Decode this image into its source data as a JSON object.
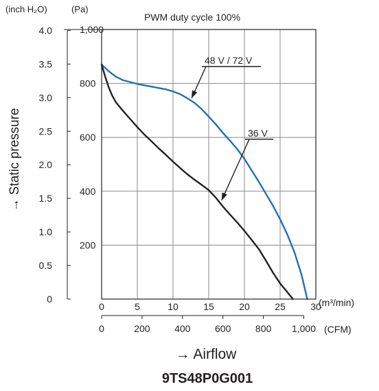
{
  "chart_data": {
    "type": "line",
    "title": "9TS48P0G001",
    "subtitle": "PWM duty cycle 100%",
    "xlabel": "Airflow",
    "ylabel": "Static pressure",
    "x_unit_primary": "(m³/min)",
    "x_unit_secondary": "(CFM)",
    "y_unit_primary": "(Pa)",
    "y_unit_secondary": "(inch H₂O)",
    "xlim": [
      0,
      30
    ],
    "ylim": [
      0,
      1000
    ],
    "x_ticks": [
      "0",
      "5",
      "10",
      "15",
      "20",
      "25",
      "30"
    ],
    "x_ticks_cfm": [
      "0",
      "200",
      "400",
      "600",
      "800",
      "1,000"
    ],
    "cfm_values": [
      0,
      200,
      400,
      600,
      800,
      1000
    ],
    "y_ticks_pa": [
      "200",
      "400",
      "600",
      "800",
      "1,000"
    ],
    "pa_values": [
      200,
      400,
      600,
      800,
      1000
    ],
    "y_ticks_inh2o": [
      "0",
      "0.5",
      "1.0",
      "1.5",
      "2.0",
      "2.5",
      "3.0",
      "3.5",
      "4.0"
    ],
    "inh2o_values": [
      0,
      0.5,
      1.0,
      1.5,
      2.0,
      2.5,
      3.0,
      3.5,
      4.0
    ],
    "grid": true,
    "series": [
      {
        "name": "48 V / 72 V",
        "color": "#1f6fb4",
        "x": [
          0,
          1,
          2,
          3,
          5,
          7,
          8,
          9,
          10,
          11,
          12,
          13,
          14,
          15,
          16,
          17,
          18,
          19,
          20,
          21,
          22,
          23,
          24,
          25,
          26,
          27,
          28,
          28.8
        ],
        "y": [
          870,
          845,
          825,
          812,
          798,
          788,
          783,
          778,
          770,
          760,
          745,
          728,
          705,
          677,
          648,
          616,
          587,
          556,
          520,
          478,
          436,
          391,
          346,
          296,
          240,
          174,
          90,
          0
        ]
      },
      {
        "name": "36 V",
        "color": "#231f20",
        "x": [
          0,
          0.5,
          1,
          1.5,
          2,
          3,
          4,
          5,
          6,
          7,
          8,
          9,
          10,
          11,
          12,
          13,
          14,
          15,
          16,
          17,
          18,
          19,
          20,
          21,
          22,
          23,
          24,
          25,
          26,
          26.8
        ],
        "y": [
          870,
          825,
          785,
          754,
          730,
          698,
          668,
          638,
          610,
          585,
          559,
          535,
          510,
          486,
          463,
          443,
          424,
          404,
          376,
          343,
          313,
          284,
          253,
          220,
          186,
          143,
          98,
          58,
          26,
          0
        ]
      }
    ],
    "annotations": [
      {
        "text": "48 V / 72 V",
        "series": "48 V / 72 V",
        "points_to_x": 12.6,
        "points_to_y": 745
      },
      {
        "text": "36 V",
        "series": "36 V",
        "points_to_x": 16.8,
        "points_to_y": 366
      }
    ]
  }
}
